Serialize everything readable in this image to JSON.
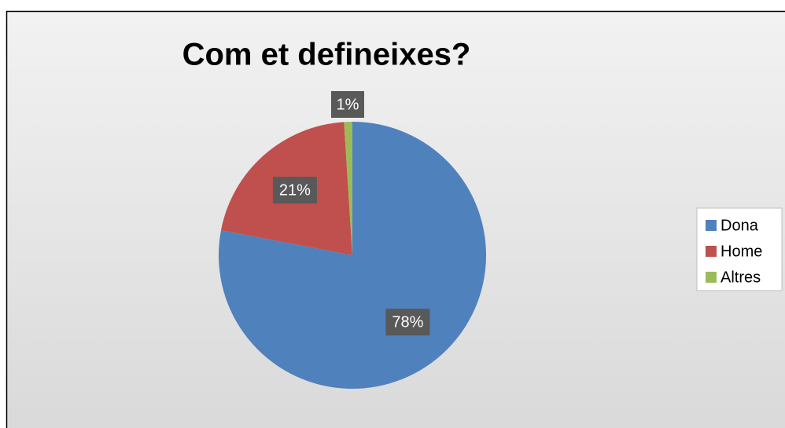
{
  "chart_data": {
    "type": "pie",
    "title": "Com et defineixes?",
    "categories": [
      "Dona",
      "Home",
      "Altres"
    ],
    "values": [
      78,
      21,
      1
    ],
    "value_labels": [
      "78%",
      "21%",
      "1%"
    ],
    "colors": [
      "#4f81bd",
      "#c0504d",
      "#9bbb59"
    ],
    "legend": "right"
  }
}
